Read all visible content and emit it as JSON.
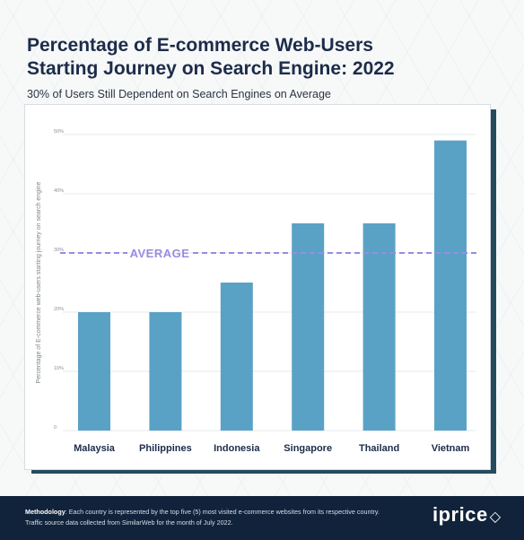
{
  "header": {
    "title_line1": "Percentage of E-commerce Web-Users",
    "title_line2": "Starting Journey on Search Engine: 2022",
    "subtitle": "30% of Users Still Dependent on Search Engines on Average"
  },
  "chart_data": {
    "type": "bar",
    "categories": [
      "Malaysia",
      "Philippines",
      "Indonesia",
      "Singapore",
      "Thailand",
      "Vietnam"
    ],
    "values": [
      20,
      20,
      25,
      35,
      35,
      49
    ],
    "ylabel": "Percentage of E-commerce web-users starting journey on search engine",
    "yticks": [
      "0",
      "10%",
      "20%",
      "30%",
      "40%",
      "50%"
    ],
    "ylim": [
      0,
      50
    ],
    "grid": true,
    "average": {
      "value": 30,
      "label": "AVERAGE"
    },
    "colors": {
      "bar": "#5aa2c5",
      "bar_top": "#4f98bd",
      "average": "#9b8ae3",
      "grid": "#e6e9eb"
    }
  },
  "footer": {
    "methodology_label": "Methodology",
    "methodology_text": ": Each country is represented by the top five (5) most visited e-commerce websites from its respective country. Traffic source data collected from SimilarWeb for the month of July 2022.",
    "brand": "iprice",
    "brand_icon": "tag-icon"
  }
}
